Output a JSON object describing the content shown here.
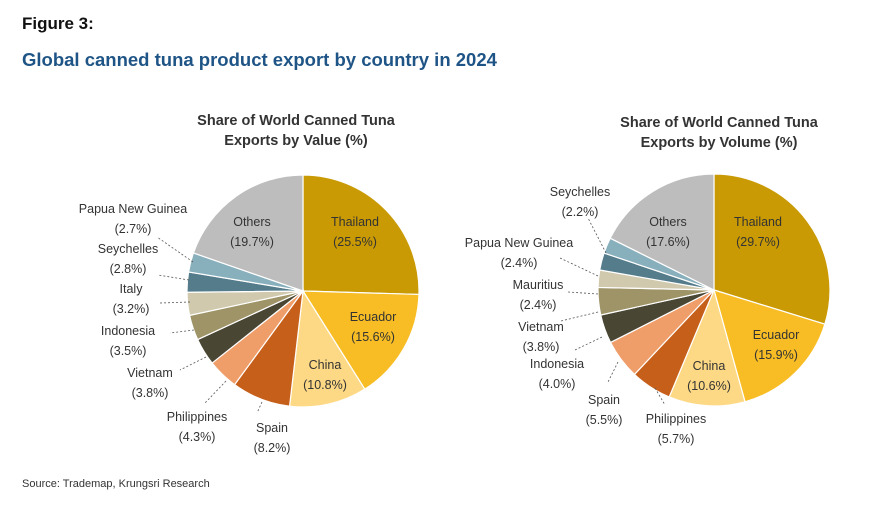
{
  "figure_label": "Figure 3:",
  "figure_title": "Global canned tuna product export by country in 2024",
  "source": "Source: Trademap, Krungsri Research",
  "chart_data": [
    {
      "type": "pie",
      "title_lines": [
        "Share of World Canned Tuna",
        "Exports by Value (%)"
      ],
      "slices": [
        {
          "name": "Thailand",
          "value": 25.5,
          "label": "(25.5%)",
          "color": "#c99a04"
        },
        {
          "name": "Ecuador",
          "value": 15.6,
          "label": "(15.6%)",
          "color": "#f8bd24"
        },
        {
          "name": "China",
          "value": 10.8,
          "label": "(10.8%)",
          "color": "#fdd985"
        },
        {
          "name": "Spain",
          "value": 8.2,
          "label": "(8.2%)",
          "color": "#c65f1a"
        },
        {
          "name": "Philippines",
          "value": 4.3,
          "label": "(4.3%)",
          "color": "#ef9e6a"
        },
        {
          "name": "Vietnam",
          "value": 3.8,
          "label": "(3.8%)",
          "color": "#4a4634"
        },
        {
          "name": "Indonesia",
          "value": 3.5,
          "label": "(3.5%)",
          "color": "#9f9468"
        },
        {
          "name": "Italy",
          "value": 3.2,
          "label": "(3.2%)",
          "color": "#d1c9ad"
        },
        {
          "name": "Seychelles",
          "value": 2.8,
          "label": "(2.8%)",
          "color": "#547c8b"
        },
        {
          "name": "Papua New Guinea",
          "value": 2.7,
          "label": "(2.7%)",
          "color": "#88afbc"
        },
        {
          "name": "Others",
          "value": 19.7,
          "label": "(19.7%)",
          "color": "#bdbdbd"
        }
      ]
    },
    {
      "type": "pie",
      "title_lines": [
        "Share of World Canned Tuna",
        "Exports by Volume (%)"
      ],
      "slices": [
        {
          "name": "Thailand",
          "value": 29.7,
          "label": "(29.7%)",
          "color": "#c99a04"
        },
        {
          "name": "Ecuador",
          "value": 15.9,
          "label": "(15.9%)",
          "color": "#f8bd24"
        },
        {
          "name": "China",
          "value": 10.6,
          "label": "(10.6%)",
          "color": "#fdd985"
        },
        {
          "name": "Philippines",
          "value": 5.7,
          "label": "(5.7%)",
          "color": "#c65f1a"
        },
        {
          "name": "Spain",
          "value": 5.5,
          "label": "(5.5%)",
          "color": "#ef9e6a"
        },
        {
          "name": "Indonesia",
          "value": 4.0,
          "label": "(4.0%)",
          "color": "#4a4634"
        },
        {
          "name": "Vietnam",
          "value": 3.8,
          "label": "(3.8%)",
          "color": "#9f9468"
        },
        {
          "name": "Mauritius",
          "value": 2.4,
          "label": "(2.4%)",
          "color": "#d1c9ad"
        },
        {
          "name": "Papua New Guinea",
          "value": 2.4,
          "label": "(2.4%)",
          "color": "#547c8b"
        },
        {
          "name": "Seychelles",
          "value": 2.2,
          "label": "(2.2%)",
          "color": "#88afbc"
        },
        {
          "name": "Others",
          "value": 17.6,
          "label": "(17.6%)",
          "color": "#bdbdbd"
        }
      ]
    }
  ]
}
